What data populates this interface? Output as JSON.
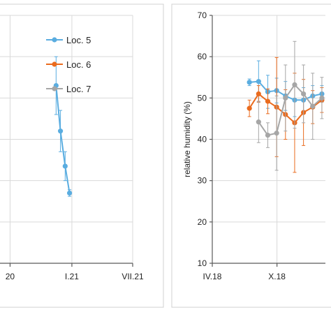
{
  "chart_data": [
    {
      "type": "line",
      "title": "",
      "xlabel": "",
      "ylabel": "",
      "x_ticks": [
        {
          "label": "20",
          "x": "2020-07-01"
        },
        {
          "label": "I.21",
          "x": "2021-01-01"
        },
        {
          "label": "VII.21",
          "x": "2021-07-01"
        }
      ],
      "xlim": [
        "2020-06-01",
        "2021-07-01"
      ],
      "ylim": [
        10,
        70
      ],
      "y_gridlines": [
        10,
        20,
        30,
        40,
        50,
        60,
        70
      ],
      "grid": "vertical and horizontal",
      "legend": "top-right",
      "legend_entries": [
        "Loc. 5",
        "Loc. 6",
        "Loc. 7"
      ],
      "series": [
        {
          "name": "Loc. 5",
          "color": "#5aade0",
          "points": [
            {
              "x": "2020-11-15",
              "y": 53.0,
              "err": 7.0
            },
            {
              "x": "2020-11-28",
              "y": 42.0,
              "err": 5.0
            },
            {
              "x": "2020-12-12",
              "y": 33.5,
              "err": 3.5
            },
            {
              "x": "2020-12-25",
              "y": 27.0,
              "err": 0.8
            }
          ]
        }
      ]
    },
    {
      "type": "line",
      "title": "",
      "xlabel": "",
      "ylabel": "relative humidity (%)",
      "x_ticks": [
        {
          "label": "IV.18",
          "x": "2018-04-01"
        },
        {
          "label": "X.18",
          "x": "2018-10-01"
        }
      ],
      "xlim": [
        "2018-04-01",
        "2019-02-15"
      ],
      "y_ticks": [
        10,
        20,
        30,
        40,
        50,
        60,
        70
      ],
      "ylim": [
        10,
        70
      ],
      "grid": "vertical and horizontal",
      "series": [
        {
          "name": "Loc. 5",
          "color": "#5aade0",
          "points": [
            {
              "x": "2018-07-15",
              "y": 53.8,
              "err": 0.8
            },
            {
              "x": "2018-08-10",
              "y": 54.0,
              "err": 5.0
            },
            {
              "x": "2018-09-05",
              "y": 51.5,
              "err": 4.0
            },
            {
              "x": "2018-09-30",
              "y": 51.8,
              "err": 3.0
            },
            {
              "x": "2018-10-25",
              "y": 50.5,
              "err": 3.5
            },
            {
              "x": "2018-11-20",
              "y": 49.5,
              "err": 4.0
            },
            {
              "x": "2018-12-15",
              "y": 49.5,
              "err": 3.0
            },
            {
              "x": "2019-01-10",
              "y": 50.5,
              "err": 2.5
            },
            {
              "x": "2019-02-05",
              "y": 51.0,
              "err": 2.0
            }
          ]
        },
        {
          "name": "Loc. 6",
          "color": "#ea6b1e",
          "points": [
            {
              "x": "2018-07-15",
              "y": 47.5,
              "err": 2.0
            },
            {
              "x": "2018-08-10",
              "y": 51.0,
              "err": 2.0
            },
            {
              "x": "2018-09-05",
              "y": 49.2,
              "err": 3.0
            },
            {
              "x": "2018-09-30",
              "y": 47.8,
              "err": 12.0
            },
            {
              "x": "2018-10-25",
              "y": 46.0,
              "err": 6.0
            },
            {
              "x": "2018-11-20",
              "y": 44.0,
              "err": 12.0
            },
            {
              "x": "2018-12-15",
              "y": 46.5,
              "err": 8.0
            },
            {
              "x": "2019-01-10",
              "y": 47.8,
              "err": 4.0
            },
            {
              "x": "2019-02-05",
              "y": 49.5,
              "err": 3.0
            }
          ]
        },
        {
          "name": "Loc. 7",
          "color": "#a6a6a6",
          "points": [
            {
              "x": "2018-08-10",
              "y": 44.2,
              "err": 5.0
            },
            {
              "x": "2018-09-05",
              "y": 41.0,
              "err": 3.0
            },
            {
              "x": "2018-09-30",
              "y": 41.5,
              "err": 9.0
            },
            {
              "x": "2018-10-25",
              "y": 50.0,
              "err": 8.0
            },
            {
              "x": "2018-11-20",
              "y": 53.2,
              "err": 10.5
            },
            {
              "x": "2018-12-15",
              "y": 51.0,
              "err": 7.0
            },
            {
              "x": "2019-01-10",
              "y": 48.0,
              "err": 8.0
            },
            {
              "x": "2019-02-05",
              "y": 50.0,
              "err": 5.0
            }
          ]
        }
      ]
    }
  ]
}
